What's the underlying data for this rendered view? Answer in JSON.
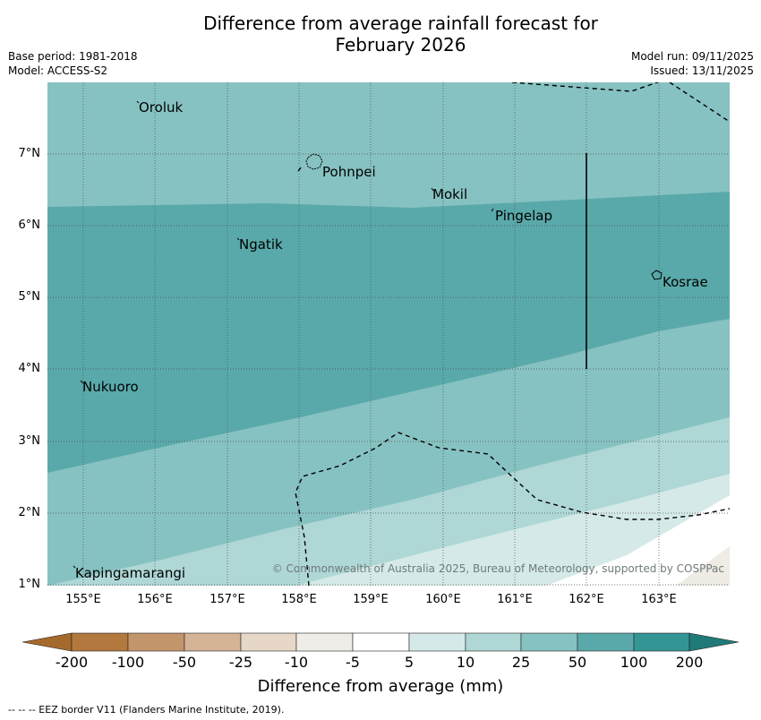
{
  "title_line1": "Difference from average rainfall forecast for",
  "title_line2": "February 2026",
  "meta": {
    "base_period": "Base period: 1981-2018",
    "model": "Model: ACCESS-S2",
    "model_run": "Model run: 09/11/2025",
    "issued": "Issued: 13/11/2025"
  },
  "map": {
    "lon_range": [
      154.5,
      164.0
    ],
    "lat_range": [
      1.0,
      8.0
    ],
    "lon_ticks": [
      "155°E",
      "156°E",
      "157°E",
      "158°E",
      "159°E",
      "160°E",
      "161°E",
      "162°E",
      "163°E"
    ],
    "lat_ticks": [
      "1°N",
      "2°N",
      "3°N",
      "4°N",
      "5°N",
      "6°N",
      "7°N"
    ],
    "places": [
      {
        "name": "Oroluk",
        "lon": 155.75,
        "lat": 7.6
      },
      {
        "name": "Pohnpei",
        "lon": 158.35,
        "lat": 6.85
      },
      {
        "name": "Mokil",
        "lon": 159.85,
        "lat": 6.42
      },
      {
        "name": "Pingelap",
        "lon": 160.75,
        "lat": 6.22
      },
      {
        "name": "Ngatik",
        "lon": 157.25,
        "lat": 5.78
      },
      {
        "name": "Kosrae",
        "lon": 162.95,
        "lat": 5.3
      },
      {
        "name": "Nukuoro",
        "lon": 154.95,
        "lat": 3.85
      },
      {
        "name": "Kapingamarangi",
        "lon": 154.85,
        "lat": 1.07
      }
    ],
    "copyright": "© Commonwealth of Australia 2025, Bureau of Meteorology, supported by COSPPac",
    "colors": {
      "band_100": "#5aa9aa",
      "band_50": "#86c2c1",
      "band_25": "#aed7d5",
      "band_10": "#d5eae8",
      "band_5": "#ffffff",
      "land_minus10": "#efebe5"
    }
  },
  "colorbar": {
    "label": "Difference from average (mm)",
    "ticks": [
      "-200",
      "-100",
      "-50",
      "-25",
      "-10",
      "-5",
      "5",
      "10",
      "25",
      "50",
      "100",
      "200"
    ],
    "colors": [
      "#a46a2c",
      "#b2783d",
      "#c2956b",
      "#d4b396",
      "#e6d7c8",
      "#f0ede8",
      "#ffffff",
      "#d5eae8",
      "#aed7d5",
      "#86c2c1",
      "#5aa9aa",
      "#339694",
      "#1f7a78"
    ]
  },
  "footnote": "--  --  -- EEZ border V11 (Flanders Marine Institute, 2019)."
}
